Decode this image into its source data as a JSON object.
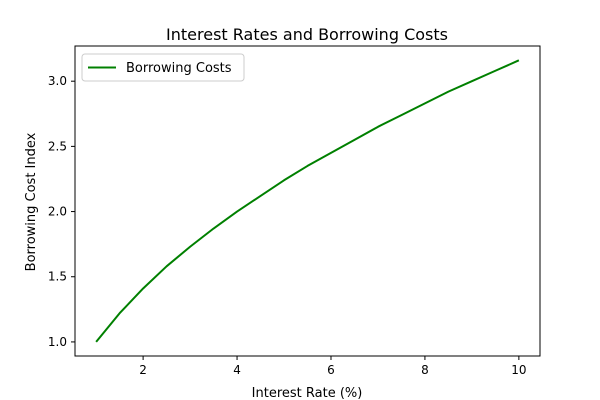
{
  "chart_data": {
    "type": "line",
    "title": "Interest Rates and Borrowing Costs",
    "xlabel": "Interest Rate (%)",
    "ylabel": "Borrowing Cost Index",
    "xlim": [
      0.55,
      10.45
    ],
    "ylim": [
      0.892,
      3.27
    ],
    "x_ticks": [
      2,
      4,
      6,
      8,
      10
    ],
    "y_ticks": [
      1.0,
      1.5,
      2.0,
      2.5,
      3.0
    ],
    "x_tick_labels": [
      "2",
      "4",
      "6",
      "8",
      "10"
    ],
    "y_tick_labels": [
      "1.0",
      "1.5",
      "2.0",
      "2.5",
      "3.0"
    ],
    "grid": false,
    "legend": {
      "position": "upper-left"
    },
    "series": [
      {
        "name": "Borrowing Costs",
        "color": "#008000",
        "x": [
          1,
          1.5,
          2,
          2.5,
          3,
          3.5,
          4,
          4.5,
          5,
          5.5,
          6,
          6.5,
          7,
          7.5,
          8,
          8.5,
          9,
          9.5,
          10
        ],
        "y": [
          1.0,
          1.22,
          1.41,
          1.58,
          1.73,
          1.87,
          2.0,
          2.12,
          2.24,
          2.35,
          2.45,
          2.55,
          2.65,
          2.74,
          2.83,
          2.92,
          3.0,
          3.08,
          3.16
        ]
      }
    ]
  }
}
